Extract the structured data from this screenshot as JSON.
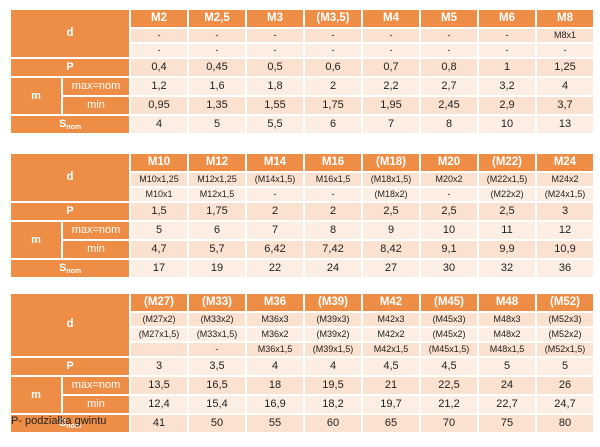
{
  "labels": {
    "d": "d",
    "P": "P",
    "m": "m",
    "max_nom": "max=nom",
    "min": "min",
    "s": "S",
    "s_sub": "nom"
  },
  "tables": [
    {
      "sizes": [
        "M2",
        "M2,5",
        "M3",
        "(M3,5)",
        "M4",
        "M5",
        "M6",
        "M8"
      ],
      "d_row1": [
        "-",
        "-",
        "-",
        "-",
        "-",
        "-",
        "-",
        "M8x1"
      ],
      "d_row2": [
        "-",
        "-",
        "-",
        "-",
        "-",
        "-",
        "-",
        "-"
      ],
      "P": [
        "0,4",
        "0,45",
        "0,5",
        "0,6",
        "0,7",
        "0,8",
        "1",
        "1,25"
      ],
      "m_max": [
        "1,2",
        "1,6",
        "1,8",
        "2",
        "2,2",
        "2,7",
        "3,2",
        "4"
      ],
      "m_min": [
        "0,95",
        "1,35",
        "1,55",
        "1,75",
        "1,95",
        "2,45",
        "2,9",
        "3,7"
      ],
      "s": [
        "4",
        "5",
        "5,5",
        "6",
        "7",
        "8",
        "10",
        "13"
      ]
    },
    {
      "sizes": [
        "M10",
        "M12",
        "M14",
        "M16",
        "(M18)",
        "M20",
        "(M22)",
        "M24"
      ],
      "d_row1": [
        "M10x1,25",
        "M12x1,25",
        "(M14x1,5)",
        "M16x1,5",
        "(M18x1,5)",
        "M20x2",
        "(M22x1,5)",
        "M24x2"
      ],
      "d_row2": [
        "M10x1",
        "M12x1,5",
        "-",
        "-",
        "(M18x2)",
        "-",
        "(M22x2)",
        "(M24x1,5)"
      ],
      "P": [
        "1,5",
        "1,75",
        "2",
        "2",
        "2,5",
        "2,5",
        "2,5",
        "3"
      ],
      "m_max": [
        "5",
        "6",
        "7",
        "8",
        "9",
        "10",
        "11",
        "12"
      ],
      "m_min": [
        "4,7",
        "5,7",
        "6,42",
        "7,42",
        "8,42",
        "9,1",
        "9,9",
        "10,9"
      ],
      "s": [
        "17",
        "19",
        "22",
        "24",
        "27",
        "30",
        "32",
        "36"
      ]
    },
    {
      "sizes": [
        "(M27)",
        "(M33)",
        "M36",
        "(M39)",
        "M42",
        "(M45)",
        "M48",
        "(M52)"
      ],
      "d_row1": [
        "(M27x2)",
        "(M33x2)",
        "M36x3",
        "(M39x3)",
        "M42x3",
        "(M45x3)",
        "M48x3",
        "(M52x3)"
      ],
      "d_row2": [
        "(M27x1,5)",
        "(M33x1,5)",
        "M36x2",
        "(M39x2)",
        "M42x2",
        "(M45x2)",
        "M48x2",
        "(M52x2)"
      ],
      "d_row3": [
        "",
        "-",
        "M36x1,5",
        "(M39x1,5)",
        "M42x1,5",
        "(M45x1,5)",
        "M48x1,5",
        "(M52x1,5)"
      ],
      "P": [
        "3",
        "3,5",
        "4",
        "4",
        "4,5",
        "4,5",
        "5",
        "5"
      ],
      "m_max": [
        "13,5",
        "16,5",
        "18",
        "19,5",
        "21",
        "22,5",
        "24",
        "26"
      ],
      "m_min": [
        "12,4",
        "15,4",
        "16,9",
        "18,2",
        "19,7",
        "21,2",
        "22,7",
        "24,7"
      ],
      "s": [
        "41",
        "50",
        "55",
        "60",
        "65",
        "70",
        "75",
        "80"
      ]
    }
  ],
  "footnote": "P- podziałka gwintu"
}
